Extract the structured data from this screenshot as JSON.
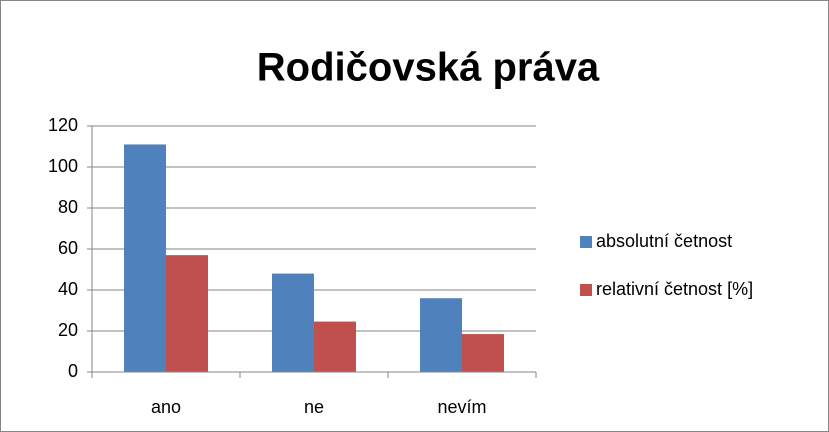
{
  "chart_data": {
    "type": "bar",
    "title": "Rodičovská práva",
    "categories": [
      "ano",
      "ne",
      "nevím"
    ],
    "series": [
      {
        "name": "absolutní četnost",
        "color": "#4f81bd",
        "values": [
          111,
          48,
          36
        ]
      },
      {
        "name": "relativní četnost [%]",
        "color": "#c0504d",
        "values": [
          57,
          24.6,
          18.5
        ]
      }
    ],
    "ylim": [
      0,
      120
    ],
    "yticks": [
      0,
      20,
      40,
      60,
      80,
      100,
      120
    ],
    "grid": true,
    "legend": "right"
  }
}
